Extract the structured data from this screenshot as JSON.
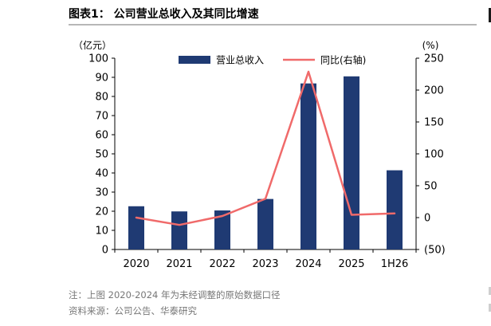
{
  "title": "图表1： 公司营业总收入及其同比增速",
  "note": "注：上图 2020-2024 年为未经调整的原始数据口径",
  "source": "资料来源：公司公告、华泰研究",
  "colors": {
    "bar": "#1f3a73",
    "line": "#f06a6a",
    "axis": "#000000"
  },
  "chart_data": {
    "type": "bar",
    "categories": [
      "2020",
      "2021",
      "2022",
      "2023",
      "2024",
      "2025",
      "1H26"
    ],
    "series": [
      {
        "name": "营业总收入",
        "type": "bar",
        "axis": "left",
        "values": [
          22.6,
          19.9,
          20.4,
          26.4,
          86.8,
          90.5,
          41.4
        ]
      },
      {
        "name": "同比(右轴)",
        "type": "line",
        "axis": "right",
        "values": [
          0,
          -11.5,
          2.5,
          29.5,
          228.8,
          4.3,
          6.5
        ]
      }
    ],
    "y_left": {
      "unit": "（亿元）",
      "ylim": [
        0,
        100
      ],
      "ticks": [
        "0",
        "10",
        "20",
        "30",
        "40",
        "50",
        "60",
        "70",
        "80",
        "90",
        "100"
      ]
    },
    "y_right": {
      "unit": "(%)",
      "ylim": [
        -50,
        250
      ],
      "ticks": [
        "(50)",
        "0",
        "50",
        "100",
        "150",
        "200",
        "250"
      ]
    },
    "grid": false,
    "legend": "top"
  }
}
